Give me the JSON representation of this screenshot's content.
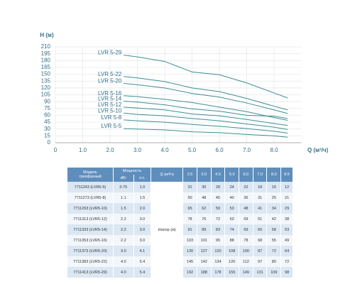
{
  "chart_data": {
    "type": "line",
    "ylabel": "H (м)",
    "xlabel": "Q (м³/ч)",
    "x": [
      2.5,
      3.0,
      4.0,
      5.0,
      6.0,
      7.0,
      8.0,
      8.5
    ],
    "xlim": [
      0,
      9
    ],
    "ylim": [
      0,
      210
    ],
    "xticks": [
      0,
      {
        "value": 1,
        "label": "1.0"
      },
      {
        "value": 2,
        "label": "2.0"
      },
      {
        "value": 3,
        "label": "3.0"
      },
      {
        "value": 4,
        "label": "4.0"
      },
      {
        "value": 5,
        "label": "5.0"
      },
      {
        "value": 6,
        "label": "6.0"
      },
      {
        "value": 7,
        "label": "7.0"
      },
      {
        "value": 8,
        "label": "8.0"
      }
    ],
    "yticks": [
      0,
      15,
      30,
      45,
      60,
      75,
      90,
      105,
      120,
      135,
      150,
      165,
      180,
      195,
      210
    ],
    "grid": true,
    "series": [
      {
        "name": "LVR 5-29",
        "color": "#3f8e93",
        "values": [
          192,
          188,
          178,
          155,
          149,
          131,
          109,
          98
        ]
      },
      {
        "name": "LVR 5-22",
        "color": "#3f8e93",
        "values": [
          145,
          142,
          134,
          120,
          112,
          97,
          80,
          72
        ]
      },
      {
        "name": "LVR 5-20",
        "color": "#3f8e93",
        "values": [
          130,
          127,
          120,
          108,
          100,
          87,
          72,
          64
        ]
      },
      {
        "name": "LVR 5-16",
        "color": "#3f8e93",
        "values": [
          103,
          101,
          95,
          88,
          78,
          68,
          55,
          49
        ]
      },
      {
        "name": "LVR 5-14",
        "color": "#3f8e93",
        "values": [
          91,
          89,
          83,
          74,
          69,
          60,
          58,
          53
        ]
      },
      {
        "name": "LVR 5-12",
        "color": "#3f8e93",
        "values": [
          78,
          76,
          72,
          63,
          59,
          51,
          42,
          38
        ]
      },
      {
        "name": "LVR 5-10",
        "color": "#3f8e93",
        "values": [
          65,
          62,
          59,
          53,
          48,
          41,
          34,
          29
        ]
      },
      {
        "name": "LVR 5-8",
        "color": "#3f8e93",
        "values": [
          50,
          48,
          45,
          40,
          36,
          31,
          25,
          21
        ]
      },
      {
        "name": "LVR 5-5",
        "color": "#3f8e93",
        "values": [
          31,
          30,
          28,
          24,
          22,
          18,
          15,
          12
        ]
      }
    ]
  },
  "table": {
    "model_header": [
      "Модель",
      "трехфазный"
    ],
    "power_header": "Мощность",
    "power_units": [
      "кВт",
      "л.с."
    ],
    "q_header": "Q (м³/ч)",
    "flows": [
      "2.5",
      "3.0",
      "4.0",
      "5.0",
      "6.0",
      "7.0",
      "8.0",
      "8.5"
    ],
    "head_label": "Напор (м)",
    "rows": [
      {
        "model": "7711243 (LVR5-5)",
        "kw": "0.75",
        "hp": "1.0",
        "heads": [
          31,
          30,
          28,
          24,
          22,
          18,
          15,
          12
        ]
      },
      {
        "model": "7711273 (LVR5-8)",
        "kw": "1.1",
        "hp": "1.5",
        "heads": [
          50,
          48,
          45,
          40,
          36,
          31,
          25,
          21
        ]
      },
      {
        "model": "7711293 (LVR5-10)",
        "kw": "1.5",
        "hp": "2.0",
        "heads": [
          65,
          62,
          59,
          53,
          48,
          41,
          34,
          29
        ]
      },
      {
        "model": "7711313 (LVR5-12)",
        "kw": "2.2",
        "hp": "3.0",
        "heads": [
          78,
          76,
          72,
          63,
          59,
          51,
          42,
          38
        ]
      },
      {
        "model": "7711333 (LVR5-14)",
        "kw": "2.2",
        "hp": "3.0",
        "heads": [
          91,
          89,
          83,
          74,
          69,
          60,
          58,
          53
        ]
      },
      {
        "model": "7711353 (LVR5-16)",
        "kw": "2.2",
        "hp": "3.0",
        "heads": [
          103,
          101,
          95,
          88,
          78,
          68,
          55,
          49
        ]
      },
      {
        "model": "7711373 (LVR5-20)",
        "kw": "3.0",
        "hp": "4.1",
        "heads": [
          130,
          127,
          120,
          108,
          100,
          87,
          72,
          64
        ]
      },
      {
        "model": "7711383 (LVR5-22)",
        "kw": "4.0",
        "hp": "5.4",
        "heads": [
          145,
          142,
          134,
          120,
          112,
          97,
          80,
          72
        ]
      },
      {
        "model": "7711413 (LVR5-29)",
        "kw": "4.0",
        "hp": "5.4",
        "heads": [
          192,
          188,
          178,
          155,
          149,
          131,
          109,
          98
        ]
      }
    ]
  }
}
